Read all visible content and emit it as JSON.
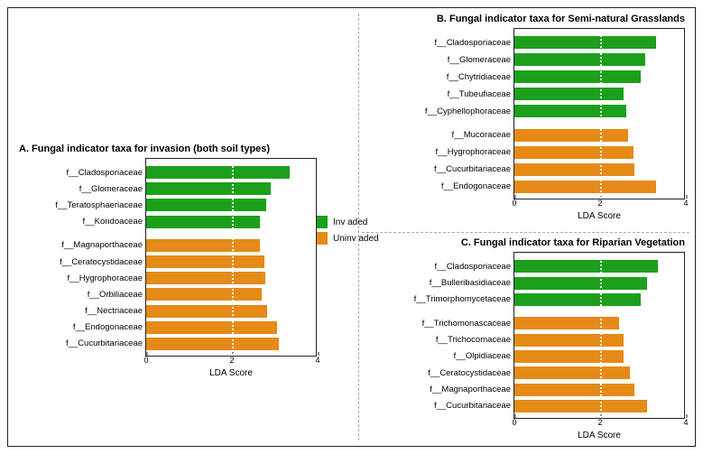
{
  "colors": {
    "invaded": "#1ca01c",
    "uninvaded": "#e58a17",
    "frame": "#222222",
    "refline": "#ffffff",
    "background": "#ffffff",
    "divider": "#aaaaaa"
  },
  "legend": {
    "invaded_label": "Inv aded",
    "uninvaded_label": "Uninv aded"
  },
  "axis": {
    "xlabel": "LDA Score",
    "xmin": 0,
    "xmax": 4,
    "xticks": [
      0,
      2,
      4
    ],
    "refline_at": 2
  },
  "panelA": {
    "title": "A. Fungal indicator taxa for invasion (both soil types)",
    "invaded": [
      {
        "label": "f__Cladosporiaceae",
        "value": 3.35
      },
      {
        "label": "f__Glomeraceae",
        "value": 2.9
      },
      {
        "label": "f__Teratosphaeriaceae",
        "value": 2.8
      },
      {
        "label": "f__Kondoaceae",
        "value": 2.65
      }
    ],
    "uninvaded": [
      {
        "label": "f__Magnaporthaceae",
        "value": 2.65
      },
      {
        "label": "f__Ceratocystidaceae",
        "value": 2.75
      },
      {
        "label": "f__Hygrophoraceae",
        "value": 2.78
      },
      {
        "label": "f__Orbiliaceae",
        "value": 2.7
      },
      {
        "label": "f__Nectriaceae",
        "value": 2.82
      },
      {
        "label": "f__Endogonaceae",
        "value": 3.05
      },
      {
        "label": "f__Cucurbitariaceae",
        "value": 3.1
      }
    ]
  },
  "panelB": {
    "title": "B. Fungal indicator taxa for Semi-natural Grasslands",
    "invaded": [
      {
        "label": "f__Cladosporiaceae",
        "value": 3.3
      },
      {
        "label": "f__Glomeraceae",
        "value": 3.05
      },
      {
        "label": "f__Chytridiaceae",
        "value": 2.95
      },
      {
        "label": "f__Tubeufiaceae",
        "value": 2.55
      },
      {
        "label": "f__Cyphellophoraceae",
        "value": 2.6
      }
    ],
    "uninvaded": [
      {
        "label": "f__Mucoraceae",
        "value": 2.65
      },
      {
        "label": "f__Hygrophoraceae",
        "value": 2.78
      },
      {
        "label": "f__Cucurbitariaceae",
        "value": 2.8
      },
      {
        "label": "f__Endogonaceae",
        "value": 3.3
      }
    ]
  },
  "panelC": {
    "title": "C. Fungal indicator taxa for Riparian Vegetation",
    "invaded": [
      {
        "label": "f__Cladosporiaceae",
        "value": 3.35
      },
      {
        "label": "f__Bulleribasidiaceae",
        "value": 3.1
      },
      {
        "label": "f__Trimorphomycetaceae",
        "value": 2.95
      }
    ],
    "uninvaded": [
      {
        "label": "f__Trichomonascaceae",
        "value": 2.45
      },
      {
        "label": "f__Trichocomaceae",
        "value": 2.55
      },
      {
        "label": "f__Olpidiaceae",
        "value": 2.55
      },
      {
        "label": "f__Ceratocystidaceae",
        "value": 2.7
      },
      {
        "label": "f__Magnaporthaceae",
        "value": 2.8
      },
      {
        "label": "f__Cucurbitariaceae",
        "value": 3.1
      }
    ]
  }
}
